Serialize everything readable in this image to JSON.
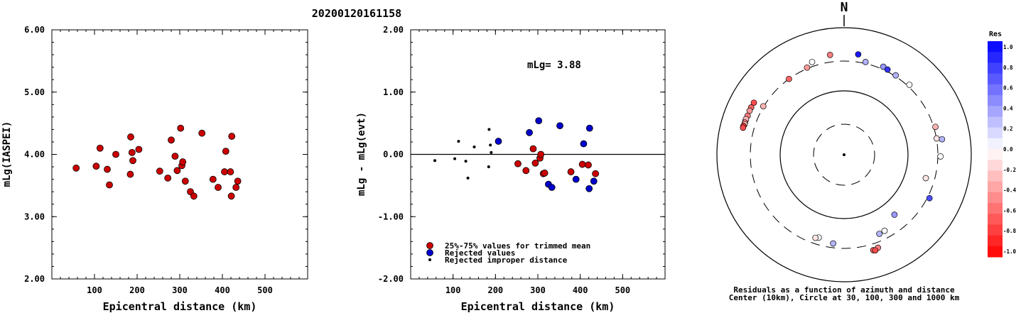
{
  "title": "20200120161158",
  "chart_data": [
    {
      "type": "scatter",
      "ylabel": "mLg(IASPEI)",
      "xlabel": "Epicentral distance (km)",
      "xlim": [
        0,
        600
      ],
      "ylim": [
        2.0,
        6.0
      ],
      "xticks": [
        "100",
        "200",
        "300",
        "400",
        "500"
      ],
      "yticks": [
        "2.00",
        "3.00",
        "4.00",
        "5.00",
        "6.00"
      ],
      "series": [
        {
          "color": "#cc0000",
          "points": [
            [
              57,
              3.78
            ],
            [
              104,
              3.81
            ],
            [
              113,
              4.1
            ],
            [
              130,
              3.76
            ],
            [
              135,
              3.51
            ],
            [
              150,
              4.0
            ],
            [
              185,
              4.28
            ],
            [
              184,
              3.68
            ],
            [
              188,
              4.03
            ],
            [
              190,
              3.9
            ],
            [
              204,
              4.08
            ],
            [
              253,
              3.73
            ],
            [
              272,
              3.62
            ],
            [
              280,
              4.23
            ],
            [
              289,
              3.97
            ],
            [
              294,
              3.74
            ],
            [
              302,
              4.42
            ],
            [
              305,
              3.82
            ],
            [
              307,
              3.88
            ],
            [
              313,
              3.57
            ],
            [
              325,
              3.4
            ],
            [
              333,
              3.33
            ],
            [
              352,
              4.34
            ],
            [
              378,
              3.6
            ],
            [
              390,
              3.47
            ],
            [
              405,
              3.72
            ],
            [
              408,
              4.05
            ],
            [
              419,
              3.72
            ],
            [
              421,
              3.33
            ],
            [
              422,
              4.29
            ],
            [
              432,
              3.47
            ],
            [
              436,
              3.57
            ]
          ]
        }
      ]
    },
    {
      "type": "scatter",
      "ylabel": "mLg - mLg(evt)",
      "xlabel": "Epicentral distance (km)",
      "annotation": "mLg= 3.88",
      "xlim": [
        0,
        600
      ],
      "ylim": [
        -2.0,
        2.0
      ],
      "xticks": [
        "100",
        "200",
        "300",
        "400",
        "500"
      ],
      "yticks": [
        "-2.00",
        "-1.00",
        "0.00",
        "1.00",
        "2.00"
      ],
      "reference_line": 0,
      "series": [
        {
          "name": "25%-75% values for trimmed mean",
          "color": "#cc0000",
          "points": [
            [
              253,
              -0.15
            ],
            [
              272,
              -0.26
            ],
            [
              289,
              0.09
            ],
            [
              294,
              -0.14
            ],
            [
              305,
              -0.06
            ],
            [
              307,
              0.0
            ],
            [
              313,
              -0.31
            ],
            [
              316,
              -0.3
            ],
            [
              378,
              -0.28
            ],
            [
              405,
              -0.16
            ],
            [
              419,
              -0.17
            ],
            [
              436,
              -0.31
            ]
          ]
        },
        {
          "name": "Rejected values",
          "color": "#0000cc",
          "points": [
            [
              207,
              0.21
            ],
            [
              280,
              0.35
            ],
            [
              302,
              0.54
            ],
            [
              325,
              -0.48
            ],
            [
              333,
              -0.53
            ],
            [
              352,
              0.46
            ],
            [
              390,
              -0.4
            ],
            [
              408,
              0.17
            ],
            [
              421,
              -0.55
            ],
            [
              422,
              0.42
            ],
            [
              432,
              -0.43
            ]
          ]
        },
        {
          "name": "Rejected improper distance",
          "color": "#000000",
          "points": [
            [
              57,
              -0.1
            ],
            [
              104,
              -0.07
            ],
            [
              113,
              0.21
            ],
            [
              130,
              -0.11
            ],
            [
              135,
              -0.38
            ],
            [
              150,
              0.12
            ],
            [
              185,
              0.4
            ],
            [
              184,
              -0.2
            ],
            [
              188,
              0.15
            ],
            [
              190,
              0.03
            ]
          ]
        }
      ]
    },
    {
      "type": "polar-scatter",
      "north_label": "N",
      "caption_line1": "Residuals as a function of azimuth and distance",
      "caption_line2": "Center (10km), Circle at 30, 100, 300 and 1000 km",
      "rings_km": [
        30,
        100,
        300,
        1000
      ],
      "colorbar_title": "Res",
      "colorbar_ticks": [
        "1.0",
        "0.8",
        "0.6",
        "0.4",
        "0.2",
        "0.0",
        "-0.2",
        "-0.4",
        "-0.6",
        "-0.8",
        "-1.0"
      ],
      "points_az_dist_res": [
        [
          337,
          311,
          -0.4
        ],
        [
          324,
          300,
          -0.6
        ],
        [
          301,
          305,
          -0.3
        ],
        [
          341,
          352,
          0.0
        ],
        [
          13,
          317,
          0.3
        ],
        [
          24,
          330,
          0.4
        ],
        [
          27,
          321,
          0.8
        ],
        [
          33,
          311,
          0.3
        ],
        [
          43,
          322,
          0.0
        ],
        [
          352,
          388,
          -0.5
        ],
        [
          8,
          396,
          0.9
        ],
        [
          300,
          436,
          -0.7
        ],
        [
          297,
          438,
          -0.6
        ],
        [
          295,
          437,
          -0.4
        ],
        [
          292,
          434,
          -0.5
        ],
        [
          289,
          439,
          -0.4
        ],
        [
          290,
          440,
          -0.3
        ],
        [
          288,
          438,
          -0.5
        ],
        [
          287,
          434,
          -0.2
        ],
        [
          286,
          444,
          -0.8
        ],
        [
          285,
          443,
          -0.7
        ],
        [
          73,
          319,
          -0.3
        ],
        [
          80,
          302,
          -0.1
        ],
        [
          91,
          330,
          0.0
        ],
        [
          81,
          364,
          0.3
        ],
        [
          106,
          217,
          -0.1
        ],
        [
          140,
          170,
          0.4
        ],
        [
          117,
          323,
          0.7
        ],
        [
          156,
          231,
          0.3
        ],
        [
          152,
          227,
          0.0
        ],
        [
          187,
          256,
          0.3
        ],
        [
          197,
          231,
          0.0
        ],
        [
          199,
          242,
          -0.1
        ],
        [
          160,
          363,
          -0.5
        ],
        [
          163,
          374,
          -0.6
        ],
        [
          162,
          385,
          -0.7
        ]
      ]
    }
  ]
}
